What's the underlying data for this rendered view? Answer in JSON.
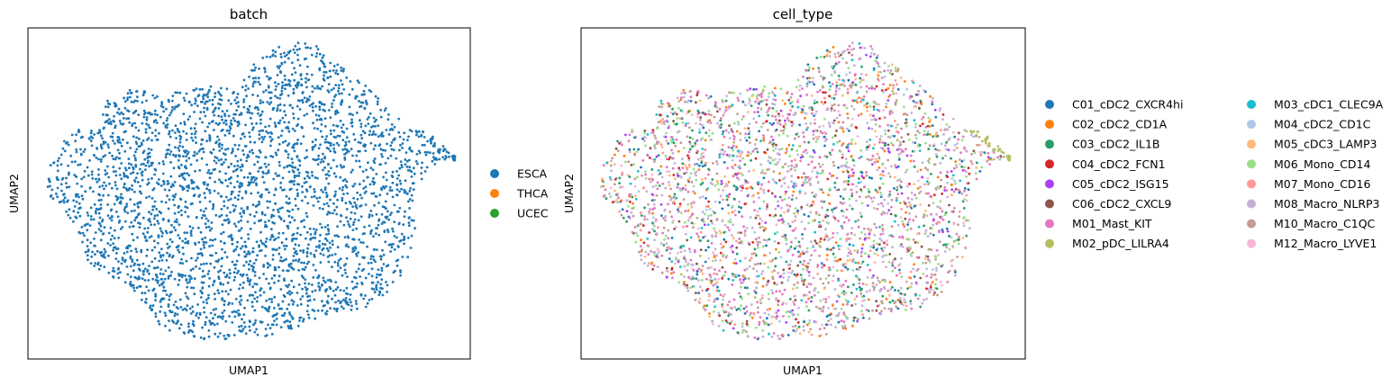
{
  "chart_data": [
    {
      "type": "scatter",
      "title": "batch",
      "xlabel": "UMAP1",
      "ylabel": "UMAP2",
      "xticks": [],
      "yticks": [],
      "grid": false,
      "legend_position": "right",
      "legend": [
        {
          "label": "ESCA",
          "color": "#1f77b4"
        },
        {
          "label": "THCA",
          "color": "#ff7f0e"
        },
        {
          "label": "UCEC",
          "color": "#2ca02c"
        }
      ],
      "point_color_by": "batch",
      "observed_categories": [
        "ESCA"
      ]
    },
    {
      "type": "scatter",
      "title": "cell_type",
      "xlabel": "UMAP1",
      "ylabel": "UMAP2",
      "xticks": [],
      "yticks": [],
      "grid": false,
      "legend_position": "right",
      "legend_columns": 2,
      "legend": [
        {
          "label": "C01_cDC2_CXCR4hi",
          "color": "#1f77b4"
        },
        {
          "label": "C02_cDC2_CD1A",
          "color": "#ff7f0e"
        },
        {
          "label": "C03_cDC2_IL1B",
          "color": "#279e68"
        },
        {
          "label": "C04_cDC2_FCN1",
          "color": "#d62728"
        },
        {
          "label": "C05_cDC2_ISG15",
          "color": "#aa40fc"
        },
        {
          "label": "C06_cDC2_CXCL9",
          "color": "#8c564b"
        },
        {
          "label": "M01_Mast_KIT",
          "color": "#e377c2"
        },
        {
          "label": "M02_pDC_LILRA4",
          "color": "#b5bd61"
        },
        {
          "label": "M03_cDC1_CLEC9A",
          "color": "#17becf"
        },
        {
          "label": "M04_cDC2_CD1C",
          "color": "#aec7e8"
        },
        {
          "label": "M05_cDC3_LAMP3",
          "color": "#ffbb78"
        },
        {
          "label": "M06_Mono_CD14",
          "color": "#98df8a"
        },
        {
          "label": "M07_Mono_CD16",
          "color": "#ff9896"
        },
        {
          "label": "M08_Macro_NLRP3",
          "color": "#c5b0d5"
        },
        {
          "label": "M10_Macro_C1QC",
          "color": "#c49c94"
        },
        {
          "label": "M12_Macro_LYVE1",
          "color": "#f7b6d2"
        }
      ],
      "point_color_by": "cell_type"
    }
  ]
}
